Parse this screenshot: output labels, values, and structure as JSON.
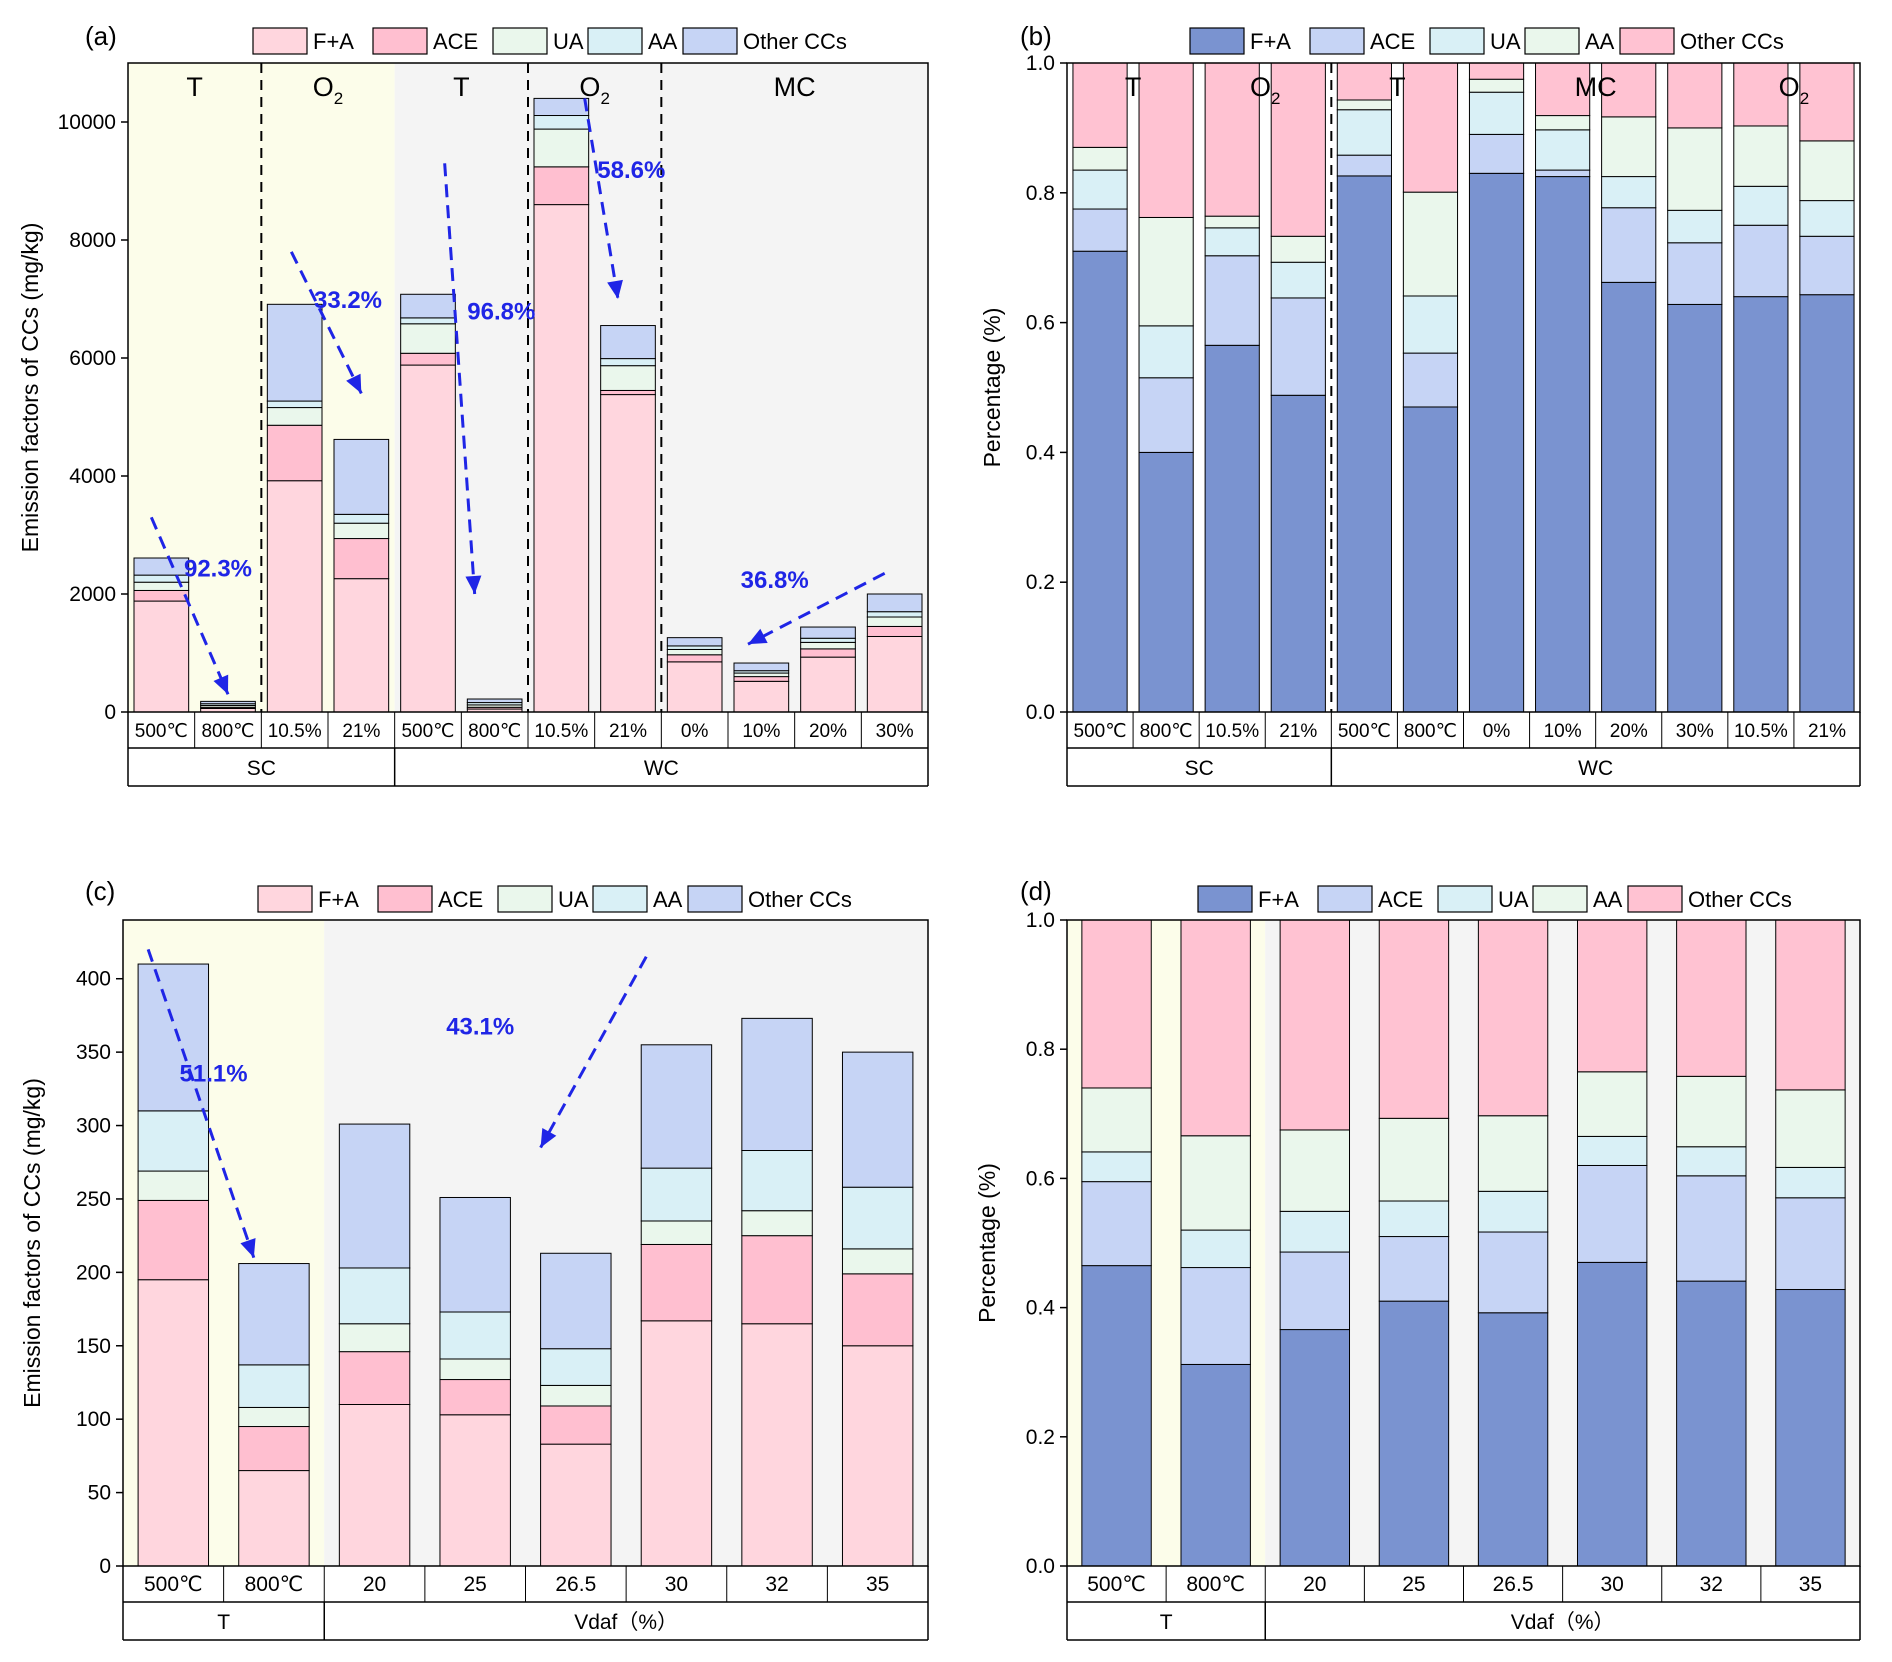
{
  "colors": {
    "fa_light": "#FFD6DE",
    "ace_light": "#FFBFD0",
    "ua_light": "#EAF7EC",
    "aa_light": "#D9F0F6",
    "other_light": "#C6D4F5",
    "fa_dark": "#7A93D0",
    "ace_dark": "#C6D4F5",
    "ua_dark": "#D9F0F6",
    "aa_dark": "#EAF7EC",
    "other_dark": "#FFC2D2",
    "bg_yellow": "#FCFDEA",
    "bg_grey": "#F4F4F4",
    "arrow": "#1F25E6"
  },
  "chart_data": [
    {
      "panel": "(a)",
      "type": "bar",
      "stacked": true,
      "ylabel": "Emission factors of CCs (mg/kg)",
      "ylim": [
        0,
        11000
      ],
      "yticks": [
        0,
        2000,
        4000,
        6000,
        8000,
        10000
      ],
      "ytick_labels": [
        "0",
        "2000",
        "4000",
        "6000",
        "8000",
        "10000"
      ],
      "legend": [
        "F+A",
        "ACE",
        "UA",
        "AA",
        "Other CCs"
      ],
      "palette": "light",
      "categories": [
        "500℃",
        "800℃",
        "10.5%",
        "21%",
        "500℃",
        "800℃",
        "10.5%",
        "21%",
        "0%",
        "10%",
        "20%",
        "30%"
      ],
      "groups": [
        {
          "label": "SC",
          "from": 0,
          "to": 3
        },
        {
          "label": "WC",
          "from": 4,
          "to": 11
        }
      ],
      "regions": [
        {
          "from": 0,
          "to": 3,
          "bg": "yellow"
        },
        {
          "from": 4,
          "to": 11,
          "bg": "grey"
        }
      ],
      "dividers": [
        1.5,
        5.5,
        7.5
      ],
      "region_labels": [
        {
          "text": "T",
          "pos": 0.5,
          "sub": ""
        },
        {
          "text": "O",
          "sub": "2",
          "pos": 2.5
        },
        {
          "text": "T",
          "pos": 4.5,
          "sub": ""
        },
        {
          "text": "O",
          "sub": "2",
          "pos": 6.5
        },
        {
          "text": "MC",
          "pos": 9.5,
          "sub": ""
        }
      ],
      "series": [
        {
          "name": "F+A",
          "values": [
            1880,
            60,
            3920,
            2260,
            5880,
            50,
            8600,
            5380,
            850,
            520,
            930,
            1280
          ]
        },
        {
          "name": "ACE",
          "values": [
            180,
            20,
            940,
            680,
            200,
            30,
            640,
            70,
            120,
            80,
            140,
            170
          ]
        },
        {
          "name": "UA",
          "values": [
            140,
            30,
            300,
            260,
            500,
            40,
            640,
            420,
            90,
            60,
            110,
            160
          ]
        },
        {
          "name": "AA",
          "values": [
            120,
            30,
            110,
            150,
            100,
            40,
            230,
            120,
            60,
            40,
            70,
            90
          ]
        },
        {
          "name": "Other CCs",
          "values": [
            290,
            40,
            1640,
            1270,
            400,
            60,
            290,
            560,
            140,
            130,
            190,
            300
          ]
        }
      ],
      "annotations": [
        {
          "text": "92.3%",
          "at": [
            1.35,
            2300
          ],
          "arrow_from": [
            0.35,
            3300
          ],
          "arrow_to": [
            1.5,
            300
          ]
        },
        {
          "text": "33.2%",
          "at": [
            3.3,
            6850
          ],
          "arrow_from": [
            2.45,
            7800
          ],
          "arrow_to": [
            3.5,
            5400
          ]
        },
        {
          "text": "96.8%",
          "at": [
            5.6,
            6650
          ],
          "arrow_from": [
            4.75,
            9300
          ],
          "arrow_to": [
            5.2,
            2000
          ]
        },
        {
          "text": "58.6%",
          "at": [
            7.55,
            9050
          ],
          "arrow_from": [
            6.85,
            10400
          ],
          "arrow_to": [
            7.35,
            7000
          ]
        },
        {
          "text": "36.8%",
          "at": [
            9.7,
            2100
          ],
          "arrow_from": [
            11.35,
            2350
          ],
          "arrow_to": [
            9.3,
            1150
          ]
        }
      ]
    },
    {
      "panel": "(b)",
      "type": "bar",
      "stacked": true,
      "ylabel": "Percentage (%)",
      "ylim": [
        0,
        1.0
      ],
      "yticks": [
        0,
        0.2,
        0.4,
        0.6,
        0.8,
        1.0
      ],
      "ytick_labels": [
        "0.0",
        "0.2",
        "0.4",
        "0.6",
        "0.8",
        "1.0"
      ],
      "legend": [
        "F+A",
        "ACE",
        "UA",
        "AA",
        "Other CCs"
      ],
      "palette": "dark",
      "categories": [
        "500℃",
        "800℃",
        "10.5%",
        "21%",
        "500℃",
        "800℃",
        "0%",
        "10%",
        "20%",
        "30%",
        "10.5%",
        "21%"
      ],
      "groups": [
        {
          "label": "SC",
          "from": 0,
          "to": 3
        },
        {
          "label": "WC",
          "from": 4,
          "to": 11
        }
      ],
      "regions": [],
      "dividers": [
        3.5
      ],
      "region_labels": [
        {
          "text": "T",
          "pos": 0.5,
          "sub": ""
        },
        {
          "text": "O",
          "sub": "2",
          "pos": 2.5
        },
        {
          "text": "T",
          "pos": 4.5,
          "sub": ""
        },
        {
          "text": "MC",
          "pos": 7.5,
          "sub": ""
        },
        {
          "text": "O",
          "sub": "2",
          "pos": 10.5
        }
      ],
      "series": [
        {
          "name": "F+A",
          "values": [
            0.71,
            0.4,
            0.565,
            0.488,
            0.826,
            0.47,
            0.83,
            0.825,
            0.662,
            0.628,
            0.64,
            0.643
          ]
        },
        {
          "name": "ACE",
          "values": [
            0.065,
            0.115,
            0.138,
            0.15,
            0.032,
            0.083,
            0.06,
            0.01,
            0.115,
            0.095,
            0.11,
            0.09
          ]
        },
        {
          "name": "UA",
          "values": [
            0.06,
            0.08,
            0.043,
            0.055,
            0.07,
            0.088,
            0.065,
            0.062,
            0.048,
            0.05,
            0.06,
            0.055
          ]
        },
        {
          "name": "AA",
          "values": [
            0.035,
            0.167,
            0.018,
            0.04,
            0.015,
            0.16,
            0.02,
            0.022,
            0.092,
            0.127,
            0.093,
            0.092
          ]
        },
        {
          "name": "Other CCs",
          "values": [
            0.13,
            0.238,
            0.236,
            0.267,
            0.057,
            0.199,
            0.025,
            0.081,
            0.083,
            0.1,
            0.097,
            0.12
          ]
        }
      ],
      "annotations": []
    },
    {
      "panel": "(c)",
      "type": "bar",
      "stacked": true,
      "ylabel": "Emission factors of CCs (mg/kg)",
      "ylim": [
        0,
        440
      ],
      "yticks": [
        0,
        50,
        100,
        150,
        200,
        250,
        300,
        350,
        400
      ],
      "ytick_labels": [
        "0",
        "50",
        "100",
        "150",
        "200",
        "250",
        "300",
        "350",
        "400"
      ],
      "legend": [
        "F+A",
        "ACE",
        "UA",
        "AA",
        "Other CCs"
      ],
      "palette": "light",
      "categories": [
        "500℃",
        "800℃",
        "20",
        "25",
        "26.5",
        "30",
        "32",
        "35"
      ],
      "groups": [
        {
          "label": "T",
          "from": 0,
          "to": 1
        },
        {
          "label": "Vdaf（%）",
          "from": 2,
          "to": 7
        }
      ],
      "regions": [
        {
          "from": 0,
          "to": 1,
          "bg": "yellow"
        },
        {
          "from": 2,
          "to": 7,
          "bg": "grey"
        }
      ],
      "dividers": [],
      "region_labels": [],
      "series": [
        {
          "name": "F+A",
          "values": [
            195,
            65,
            110,
            103,
            83,
            167,
            165,
            150
          ]
        },
        {
          "name": "ACE",
          "values": [
            54,
            30,
            36,
            24,
            26,
            52,
            60,
            49
          ]
        },
        {
          "name": "UA",
          "values": [
            20,
            13,
            19,
            14,
            14,
            16,
            17,
            17
          ]
        },
        {
          "name": "AA",
          "values": [
            41,
            29,
            38,
            32,
            25,
            36,
            41,
            42
          ]
        },
        {
          "name": "Other CCs",
          "values": [
            100,
            69,
            98,
            78,
            65,
            84,
            90,
            92
          ]
        }
      ],
      "annotations": [
        {
          "text": "51.1%",
          "at": [
            0.9,
            330
          ],
          "arrow_from": [
            0.25,
            420
          ],
          "arrow_to": [
            1.3,
            210
          ]
        },
        {
          "text": "43.1%",
          "at": [
            3.55,
            362
          ],
          "arrow_from": [
            5.2,
            415
          ],
          "arrow_to": [
            4.15,
            285
          ]
        }
      ]
    },
    {
      "panel": "(d)",
      "type": "bar",
      "stacked": true,
      "ylabel": "Percentage (%)",
      "ylim": [
        0,
        1.0
      ],
      "yticks": [
        0,
        0.2,
        0.4,
        0.6,
        0.8,
        1.0
      ],
      "ytick_labels": [
        "0.0",
        "0.2",
        "0.4",
        "0.6",
        "0.8",
        "1.0"
      ],
      "legend": [
        "F+A",
        "ACE",
        "UA",
        "AA",
        "Other CCs"
      ],
      "palette": "dark",
      "categories": [
        "500℃",
        "800℃",
        "20",
        "25",
        "26.5",
        "30",
        "32",
        "35"
      ],
      "groups": [
        {
          "label": "T",
          "from": 0,
          "to": 1
        },
        {
          "label": "Vdaf（%）",
          "from": 2,
          "to": 7
        }
      ],
      "regions": [
        {
          "from": 0,
          "to": 1,
          "bg": "yellow"
        },
        {
          "from": 2,
          "to": 7,
          "bg": "grey"
        }
      ],
      "dividers": [],
      "region_labels": [],
      "series": [
        {
          "name": "F+A",
          "values": [
            0.465,
            0.312,
            0.366,
            0.41,
            0.392,
            0.47,
            0.441,
            0.428
          ]
        },
        {
          "name": "ACE",
          "values": [
            0.13,
            0.15,
            0.12,
            0.1,
            0.125,
            0.15,
            0.163,
            0.142
          ]
        },
        {
          "name": "UA",
          "values": [
            0.046,
            0.058,
            0.063,
            0.055,
            0.063,
            0.045,
            0.045,
            0.047
          ]
        },
        {
          "name": "AA",
          "values": [
            0.099,
            0.146,
            0.126,
            0.128,
            0.117,
            0.1,
            0.109,
            0.12
          ]
        },
        {
          "name": "Other CCs",
          "values": [
            0.26,
            0.334,
            0.325,
            0.307,
            0.303,
            0.235,
            0.242,
            0.263
          ]
        }
      ],
      "annotations": []
    }
  ]
}
